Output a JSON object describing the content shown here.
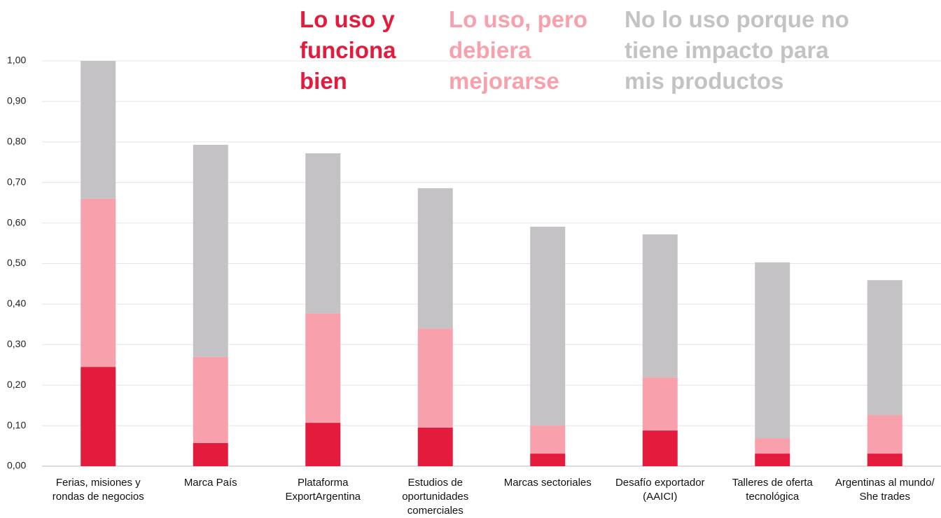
{
  "chart_data": {
    "type": "stacked_bar",
    "categories": [
      "Ferias, misiones y rondas de negocios",
      "Marca País",
      "Plataforma ExportArgentina",
      "Estudios de oportunidades comerciales",
      "Marcas sectoriales",
      "Desafío exportador (AAICI)",
      "Talleres de oferta tecnológica",
      "Argentinas al mundo/ She trades"
    ],
    "series": [
      {
        "name": "Lo uso y funciona bien",
        "color": "#e31c3d",
        "values": [
          0.245,
          0.057,
          0.107,
          0.095,
          0.031,
          0.088,
          0.031,
          0.031
        ]
      },
      {
        "name": "Lo uso, pero debiera mejorarse",
        "color": "#f8a1ad",
        "values": [
          0.415,
          0.213,
          0.27,
          0.245,
          0.069,
          0.131,
          0.038,
          0.095
        ]
      },
      {
        "name": "No lo uso porque no tiene impacto para mis productos",
        "color": "#c4c2c4",
        "values": [
          0.34,
          0.523,
          0.395,
          0.346,
          0.491,
          0.353,
          0.434,
          0.333
        ]
      }
    ],
    "ylim": [
      0,
      1
    ],
    "yticks": [
      {
        "value": 0,
        "label": "0,00"
      },
      {
        "value": 0.1,
        "label": "0,10"
      },
      {
        "value": 0.2,
        "label": "0,20"
      },
      {
        "value": 0.3,
        "label": "0,30"
      },
      {
        "value": 0.4,
        "label": "0,40"
      },
      {
        "value": 0.5,
        "label": "0,50"
      },
      {
        "value": 0.6,
        "label": "0,60"
      },
      {
        "value": 0.7,
        "label": "0,70"
      },
      {
        "value": 0.8,
        "label": "0,80"
      },
      {
        "value": 0.9,
        "label": "0,90"
      },
      {
        "value": 1,
        "label": "1,00"
      }
    ],
    "grid": true
  }
}
